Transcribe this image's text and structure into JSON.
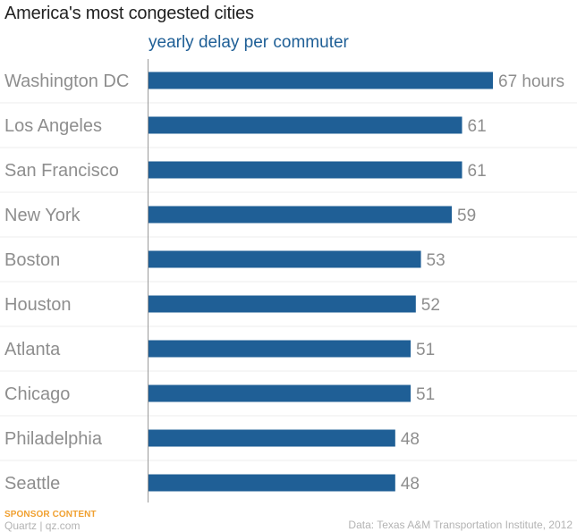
{
  "chart_data": {
    "type": "bar",
    "orientation": "horizontal",
    "title": "America's most congested cities",
    "subtitle": "yearly delay per commuter",
    "categories": [
      "Washington DC",
      "Los Angeles",
      "San Francisco",
      "New York",
      "Boston",
      "Houston",
      "Atlanta",
      "Chicago",
      "Philadelphia",
      "Seattle"
    ],
    "values": [
      67,
      61,
      61,
      59,
      53,
      52,
      51,
      51,
      48,
      48
    ],
    "value_labels": [
      "67 hours",
      "61",
      "61",
      "59",
      "53",
      "52",
      "51",
      "51",
      "48",
      "48"
    ],
    "xlim": [
      0,
      67
    ],
    "grid": true,
    "bar_color": "#1f5f96"
  },
  "footer": {
    "sponsor": "SPONSOR CONTENT",
    "brand": "Quartz | qz.com",
    "source": "Data: Texas A&M Transportation Institute, 2012"
  }
}
